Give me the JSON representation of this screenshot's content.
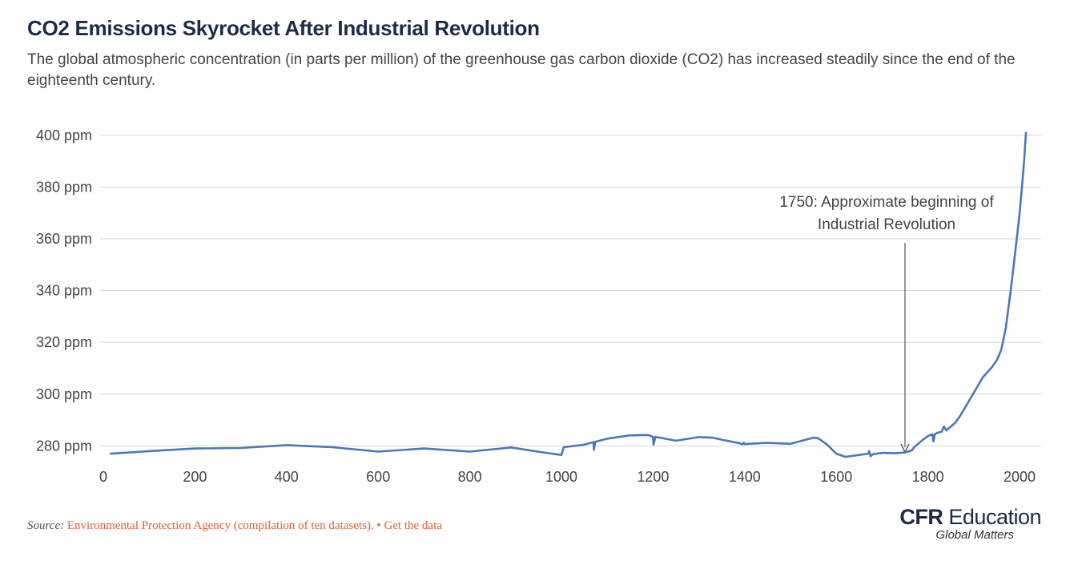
{
  "header": {
    "title": "CO2 Emissions Skyrocket After Industrial Revolution",
    "subtitle": "The global atmospheric concentration (in parts per million) of the greenhouse gas carbon dioxide (CO2) has increased steadily since the end of the eighteenth century."
  },
  "footer": {
    "source_label": "Source:",
    "source_text": "Environmental Protection Agency (compilation of ten datasets).",
    "separator": "•",
    "data_link": "Get the data"
  },
  "logo": {
    "brand_bold": "CFR",
    "brand_rest": "Education",
    "tagline": "Global Matters"
  },
  "colors": {
    "line": "#4a78b8",
    "grid": "#d6d6d6",
    "link": "#e06030",
    "title": "#1c2b49"
  },
  "chart_data": {
    "type": "line",
    "y_tick_labels": [
      "280 ppm",
      "300 ppm",
      "320 ppm",
      "340 ppm",
      "360 ppm",
      "380 ppm",
      "400 ppm"
    ],
    "y_ticks": [
      280,
      300,
      320,
      340,
      360,
      380,
      400
    ],
    "x_tick_labels": [
      "0",
      "200",
      "400",
      "600",
      "800",
      "1000",
      "1200",
      "1400",
      "1600",
      "1800",
      "2000"
    ],
    "x_ticks": [
      0,
      200,
      400,
      600,
      800,
      1000,
      1200,
      1400,
      1600,
      1800,
      2000
    ],
    "xlim": [
      0,
      2025
    ],
    "ylim": [
      274,
      404
    ],
    "grid": "horizontal",
    "annotation": {
      "lines": [
        "1750: Approximate beginning of",
        "Industrial Revolution"
      ],
      "x": 1750,
      "y": 277
    },
    "series": [
      {
        "x": [
          16,
          100,
          200,
          300,
          400,
          500,
          600,
          700,
          800,
          890,
          960,
          1000,
          1005,
          1050,
          1070,
          1071,
          1074,
          1100,
          1150,
          1190,
          1200,
          1201,
          1205,
          1250,
          1300,
          1330,
          1350,
          1390,
          1395,
          1398,
          1400,
          1450,
          1500,
          1550,
          1560,
          1580,
          1600,
          1620,
          1650,
          1670,
          1672,
          1675,
          1680,
          1700,
          1730,
          1750,
          1760,
          1765,
          1770,
          1790,
          1800,
          1810,
          1812,
          1815,
          1820,
          1830,
          1835,
          1840,
          1850,
          1860,
          1870,
          1880,
          1890,
          1900,
          1910,
          1920,
          1930,
          1940,
          1950,
          1960,
          1970,
          1980,
          1990,
          2000,
          2005,
          2010,
          2014
        ],
        "values": [
          277,
          278,
          279,
          279.2,
          280.3,
          279.5,
          277.8,
          279,
          277.8,
          279.4,
          277.5,
          276.5,
          279.5,
          280.5,
          281.5,
          278.5,
          281.6,
          282.8,
          284.1,
          284.2,
          283.5,
          280.5,
          283.5,
          282.0,
          283.4,
          283.2,
          282.4,
          281.0,
          280.6,
          281.2,
          280.7,
          281.2,
          280.8,
          283.2,
          283.0,
          280.5,
          277.0,
          275.8,
          276.5,
          277.0,
          278.0,
          276.0,
          276.8,
          277.3,
          277.2,
          277.5,
          278.0,
          278.3,
          279.5,
          282.5,
          283.8,
          284.5,
          281.7,
          284.5,
          285.0,
          285.5,
          287.5,
          286.0,
          287.5,
          289.0,
          291.5,
          294.5,
          297.5,
          300.5,
          303.5,
          306.5,
          308.5,
          310.5,
          313.0,
          317.0,
          325.5,
          339.0,
          354.0,
          369.5,
          379.5,
          390.0,
          401.0
        ]
      }
    ]
  }
}
